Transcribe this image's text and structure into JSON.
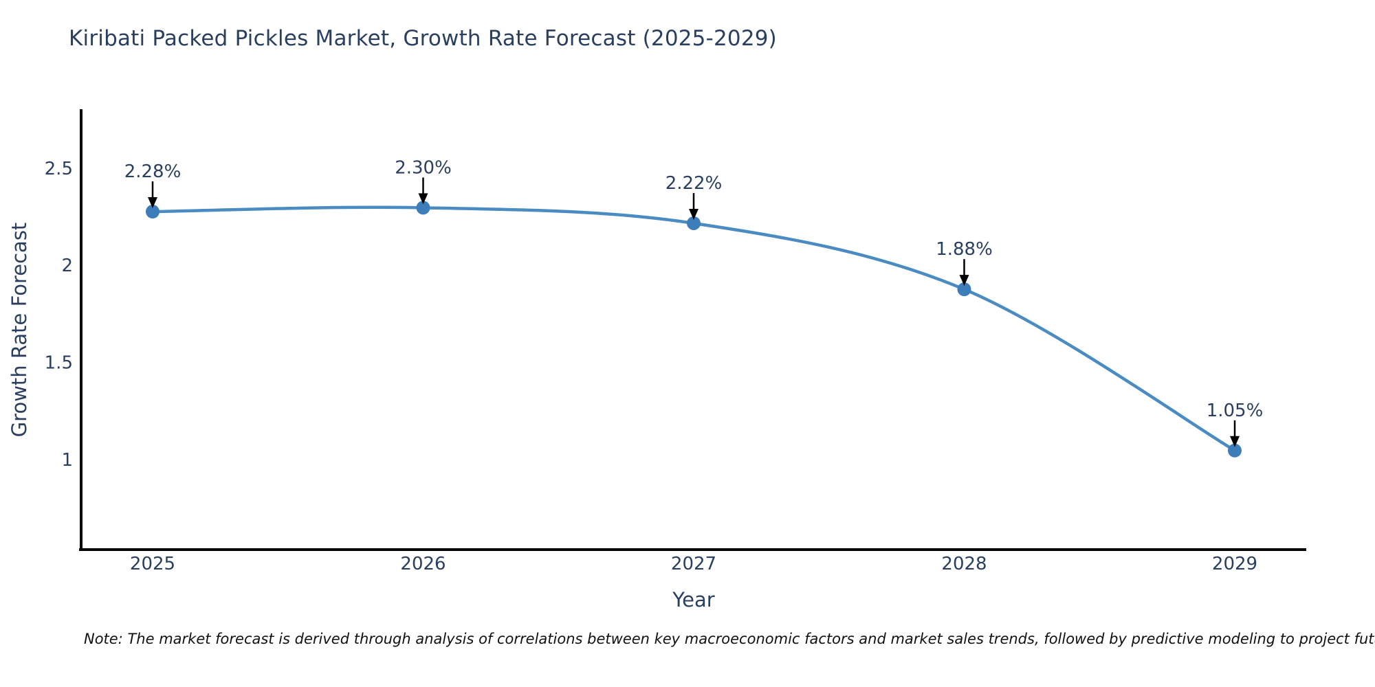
{
  "title": "Kiribati Packed Pickles Market, Growth Rate Forecast (2025-2029)",
  "note": "Note: The market forecast is derived through analysis of correlations between key macroeconomic factors and market sales trends, followed by predictive modeling to project future sales",
  "chart_data": {
    "type": "line",
    "title": "Kiribati Packed Pickles Market, Growth Rate Forecast (2025-2029)",
    "x": [
      "2025",
      "2026",
      "2027",
      "2028",
      "2029"
    ],
    "values": [
      2.28,
      2.3,
      2.22,
      1.88,
      1.05
    ],
    "point_labels": [
      "2.28%",
      "2.30%",
      "2.22%",
      "1.88%",
      "1.05%"
    ],
    "xlabel": "Year",
    "ylabel": "Growth Rate Forecast",
    "yticks": [
      1,
      1.5,
      2,
      2.5
    ],
    "ylim": [
      0.54,
      2.8
    ],
    "grid": false,
    "legend_position": "none",
    "line_shape": "spline",
    "annotations_have_arrows": true
  },
  "colors": {
    "background": "#ffffff",
    "title_text": "#2a3f5f",
    "axis_title_text": "#2a3f5f",
    "tick_text": "#2a3f5f",
    "annotation_text": "#2a3f5f",
    "line": "#4a8bc2",
    "marker": "#3d7eba",
    "arrow": "#000000",
    "axis_line": "#000000",
    "note_text": "#111111"
  }
}
